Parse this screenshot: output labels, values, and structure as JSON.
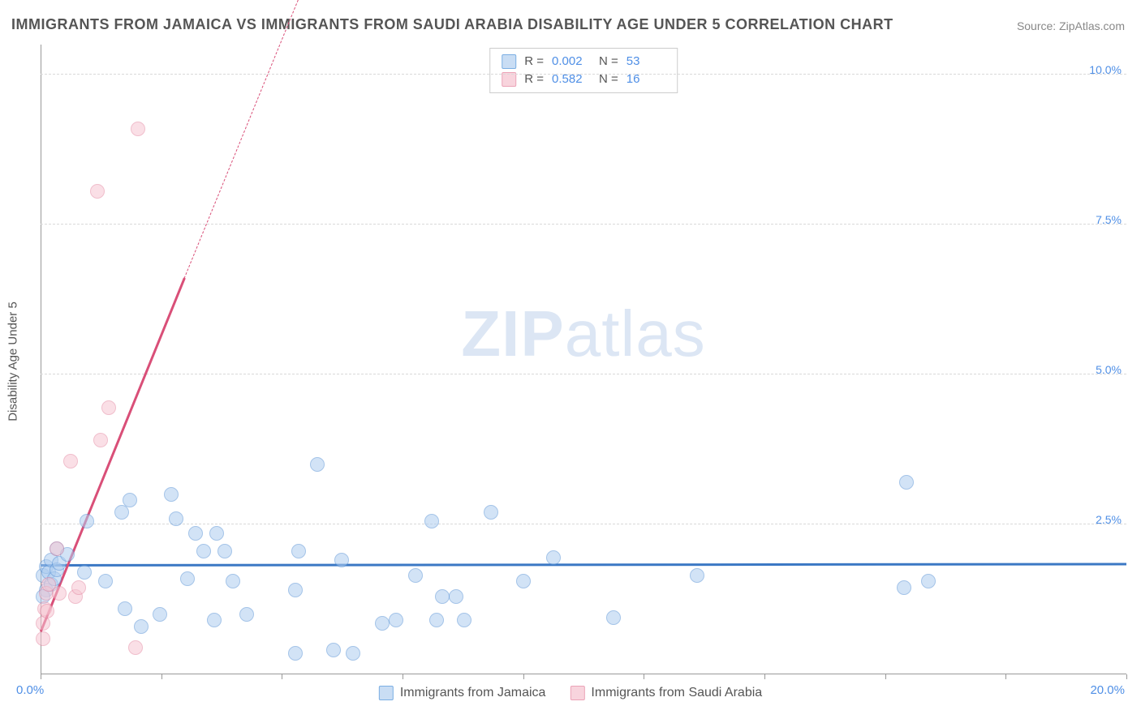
{
  "title": "IMMIGRANTS FROM JAMAICA VS IMMIGRANTS FROM SAUDI ARABIA DISABILITY AGE UNDER 5 CORRELATION CHART",
  "source": "Source: ZipAtlas.com",
  "y_axis_title": "Disability Age Under 5",
  "watermark": {
    "bold": "ZIP",
    "rest": "atlas"
  },
  "chart": {
    "type": "scatter",
    "background_color": "#ffffff",
    "grid_color": "#d9d9d9",
    "axis_color": "#999999",
    "xlim": [
      0,
      20
    ],
    "ylim": [
      0,
      10.5
    ],
    "x_ticks": [
      0,
      2.22,
      4.44,
      6.67,
      8.89,
      11.11,
      13.33,
      15.56,
      17.78,
      20
    ],
    "x_tick_labels": {
      "min": "0.0%",
      "max": "20.0%"
    },
    "y_gridlines": [
      2.5,
      5.0,
      7.5,
      10.0
    ],
    "y_tick_labels": [
      "2.5%",
      "5.0%",
      "7.5%",
      "10.0%"
    ],
    "marker_radius": 9,
    "marker_opacity": 0.55,
    "label_fontsize": 15,
    "tick_color": "#4f8fe6"
  },
  "series": [
    {
      "name": "Immigrants from Jamaica",
      "fill": "#aecdf0",
      "stroke": "#5b94d6",
      "swatch_fill": "#c9ddf4",
      "swatch_stroke": "#7aaee3",
      "R": "0.002",
      "N": "53",
      "trend": {
        "x1": 0,
        "y1": 1.8,
        "x2": 20,
        "y2": 1.82,
        "color": "#3b78c4",
        "width": 2.5
      },
      "points": [
        [
          0.05,
          1.65
        ],
        [
          0.1,
          1.8
        ],
        [
          0.1,
          1.4
        ],
        [
          0.15,
          1.7
        ],
        [
          0.2,
          1.5
        ],
        [
          0.2,
          1.9
        ],
        [
          0.25,
          1.6
        ],
        [
          0.3,
          1.75
        ],
        [
          0.3,
          2.1
        ],
        [
          0.35,
          1.85
        ],
        [
          0.5,
          2.0
        ],
        [
          0.8,
          1.7
        ],
        [
          0.85,
          2.55
        ],
        [
          1.2,
          1.55
        ],
        [
          1.5,
          2.7
        ],
        [
          1.55,
          1.1
        ],
        [
          1.65,
          2.9
        ],
        [
          1.85,
          0.8
        ],
        [
          2.2,
          1.0
        ],
        [
          2.4,
          3.0
        ],
        [
          2.5,
          2.6
        ],
        [
          2.7,
          1.6
        ],
        [
          2.85,
          2.35
        ],
        [
          3.0,
          2.05
        ],
        [
          3.2,
          0.9
        ],
        [
          3.25,
          2.35
        ],
        [
          3.4,
          2.05
        ],
        [
          3.55,
          1.55
        ],
        [
          3.8,
          1.0
        ],
        [
          4.7,
          1.4
        ],
        [
          4.7,
          0.35
        ],
        [
          4.75,
          2.05
        ],
        [
          5.1,
          3.5
        ],
        [
          5.4,
          0.4
        ],
        [
          5.55,
          1.9
        ],
        [
          5.75,
          0.35
        ],
        [
          6.3,
          0.85
        ],
        [
          6.55,
          0.9
        ],
        [
          6.9,
          1.65
        ],
        [
          7.2,
          2.55
        ],
        [
          7.3,
          0.9
        ],
        [
          7.4,
          1.3
        ],
        [
          7.65,
          1.3
        ],
        [
          7.8,
          0.9
        ],
        [
          8.3,
          2.7
        ],
        [
          8.9,
          1.55
        ],
        [
          9.45,
          1.95
        ],
        [
          10.55,
          0.95
        ],
        [
          12.1,
          1.65
        ],
        [
          15.9,
          1.45
        ],
        [
          15.95,
          3.2
        ],
        [
          16.35,
          1.55
        ],
        [
          0.05,
          1.3
        ]
      ]
    },
    {
      "name": "Immigrants from Saudi Arabia",
      "fill": "#f6c6d2",
      "stroke": "#e58aa3",
      "swatch_fill": "#f8d4dd",
      "swatch_stroke": "#eba3b7",
      "R": "0.582",
      "N": "16",
      "trend": {
        "x1": 0,
        "y1": 0.7,
        "x2": 2.65,
        "y2": 6.6,
        "color": "#d94f78",
        "width": 2.5,
        "dash_ext": {
          "x2": 5.0,
          "y2": 11.8
        }
      },
      "points": [
        [
          0.05,
          0.85
        ],
        [
          0.08,
          1.1
        ],
        [
          0.1,
          1.35
        ],
        [
          0.12,
          1.05
        ],
        [
          0.15,
          1.5
        ],
        [
          0.05,
          0.6
        ],
        [
          0.3,
          2.1
        ],
        [
          0.35,
          1.35
        ],
        [
          0.55,
          3.55
        ],
        [
          0.65,
          1.3
        ],
        [
          0.7,
          1.45
        ],
        [
          1.1,
          3.9
        ],
        [
          1.25,
          4.45
        ],
        [
          1.05,
          8.05
        ],
        [
          1.8,
          9.1
        ],
        [
          1.75,
          0.45
        ]
      ]
    }
  ],
  "legend": {
    "stats_labels": {
      "R": "R =",
      "N": "N ="
    }
  }
}
